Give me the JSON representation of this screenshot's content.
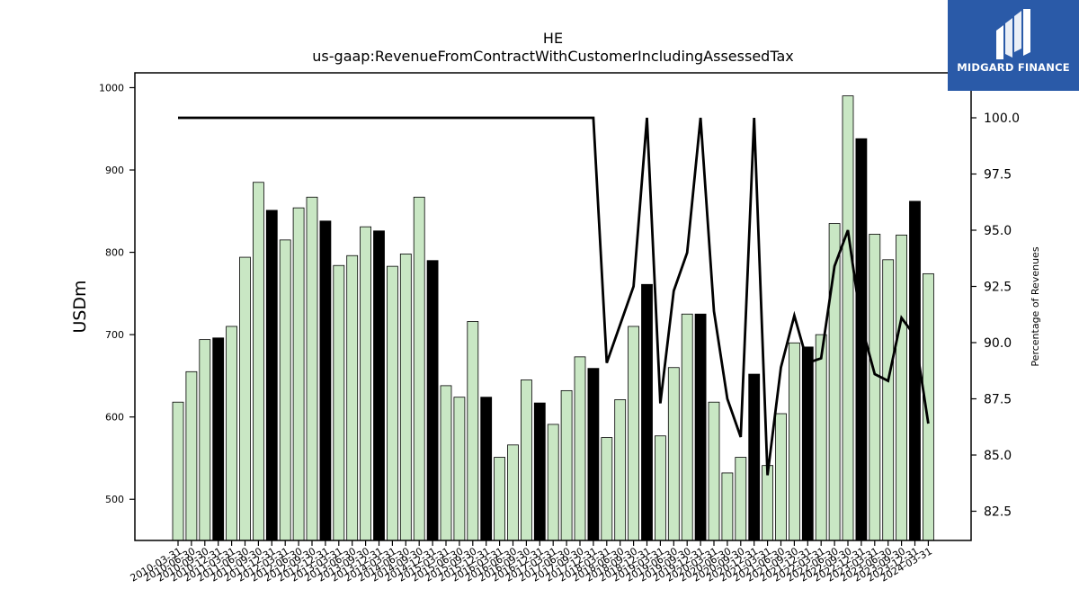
{
  "logo": {
    "text": "MIDGARD FINANCE"
  },
  "chart_data": {
    "type": "bar+line",
    "title": "HE",
    "subtitle": "us-gaap:RevenueFromContractWithCustomerIncludingAssessedTax",
    "ylabel": "USDm",
    "y2label": "Percentage of Revenues",
    "ylim": [
      450,
      1018
    ],
    "y2lim": [
      81.2,
      102.0
    ],
    "yticks": [
      500,
      600,
      700,
      800,
      900,
      1000
    ],
    "y2ticks": [
      "82.5",
      "85.0",
      "87.5",
      "90.0",
      "92.5",
      "95.0",
      "97.5",
      "100.0"
    ],
    "colors": {
      "quarter_bar": "#c9e7c4",
      "annual_bar": "#000000",
      "line": "#000000"
    },
    "categories": [
      "2010-03-31",
      "2010-06-30",
      "2010-09-30",
      "2010-12-31",
      "2011-03-31",
      "2011-06-30",
      "2011-09-30",
      "2011-12-31",
      "2012-03-31",
      "2012-06-30",
      "2012-09-30",
      "2012-12-31",
      "2013-03-31",
      "2013-06-30",
      "2013-09-30",
      "2013-12-31",
      "2014-03-31",
      "2014-06-30",
      "2014-09-30",
      "2014-12-31",
      "2015-03-31",
      "2015-06-30",
      "2015-09-30",
      "2015-12-31",
      "2016-03-31",
      "2016-06-30",
      "2016-09-30",
      "2016-12-31",
      "2017-03-31",
      "2017-06-30",
      "2017-09-30",
      "2017-12-31",
      "2018-03-31",
      "2018-06-30",
      "2018-09-30",
      "2018-12-31",
      "2019-03-31",
      "2019-06-30",
      "2019-09-30",
      "2019-12-31",
      "2020-03-31",
      "2020-06-30",
      "2020-09-30",
      "2020-12-31",
      "2021-03-31",
      "2021-06-30",
      "2021-09-30",
      "2021-12-31",
      "2022-03-31",
      "2022-06-30",
      "2022-09-30",
      "2022-12-31",
      "2023-03-31",
      "2023-06-30",
      "2023-09-30",
      "2023-12-31",
      "2024-03-31"
    ],
    "values": [
      618,
      655,
      694,
      696,
      710,
      794,
      885,
      851,
      815,
      854,
      867,
      838,
      784,
      796,
      831,
      826,
      783,
      798,
      867,
      790,
      638,
      624,
      716,
      624,
      551,
      566,
      645,
      617,
      591,
      632,
      673,
      659,
      575,
      621,
      710,
      761,
      577,
      660,
      725,
      725,
      618,
      532,
      551,
      652,
      541,
      604,
      690,
      685,
      700,
      835,
      990,
      938,
      822,
      791,
      821,
      862,
      774
    ],
    "annual": [
      false,
      false,
      false,
      true,
      false,
      false,
      false,
      true,
      false,
      false,
      false,
      true,
      false,
      false,
      false,
      true,
      false,
      false,
      false,
      true,
      false,
      false,
      false,
      true,
      false,
      false,
      false,
      true,
      false,
      false,
      false,
      true,
      false,
      false,
      false,
      true,
      false,
      false,
      false,
      true,
      false,
      false,
      false,
      true,
      false,
      false,
      false,
      true,
      false,
      false,
      false,
      true,
      false,
      false,
      false,
      true,
      false
    ],
    "percentage": [
      100,
      100,
      100,
      100,
      100,
      100,
      100,
      100,
      100,
      100,
      100,
      100,
      100,
      100,
      100,
      100,
      100,
      100,
      100,
      100,
      100,
      100,
      100,
      100,
      100,
      100,
      100,
      100,
      100,
      100,
      100,
      100,
      89.1,
      90.8,
      92.5,
      100,
      87.3,
      92.3,
      94.0,
      100,
      91.4,
      87.5,
      85.8,
      100,
      84.1,
      88.9,
      91.2,
      89.1,
      89.3,
      93.4,
      95.0,
      90.8,
      88.6,
      88.3,
      91.1,
      90.3,
      86.4
    ]
  }
}
